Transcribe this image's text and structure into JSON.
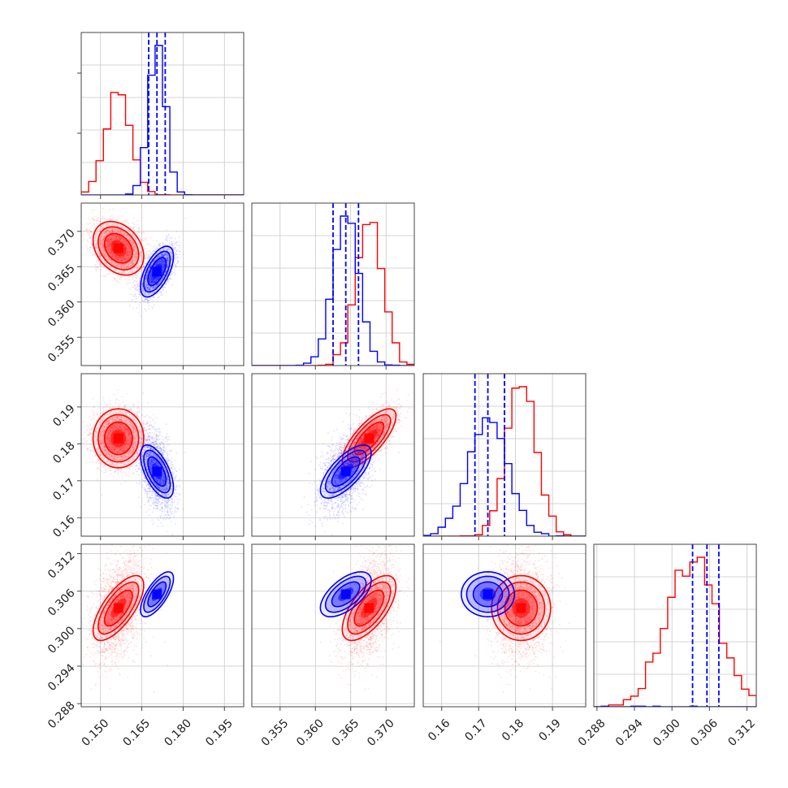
{
  "chart_data": {
    "type": "scatter",
    "subtype": "corner-plot",
    "title": "",
    "grid": true,
    "legend": "none",
    "colors": {
      "series_a": "#ff0000",
      "series_b": "#0000ff"
    },
    "params": [
      {
        "ticks": [
          0.15,
          0.165,
          0.18,
          0.195
        ],
        "tick_labels": [
          "0.150",
          "0.165",
          "0.180",
          "0.195"
        ],
        "range": [
          0.143,
          0.202
        ]
      },
      {
        "ticks": [
          0.355,
          0.36,
          0.365,
          0.37
        ],
        "tick_labels": [
          "0.355",
          "0.360",
          "0.365",
          "0.370"
        ],
        "range": [
          0.351,
          0.374
        ]
      },
      {
        "ticks": [
          0.16,
          0.17,
          0.18,
          0.19
        ],
        "tick_labels": [
          "0.16",
          "0.17",
          "0.18",
          "0.19"
        ],
        "range": [
          0.155,
          0.199
        ]
      },
      {
        "ticks": [
          0.288,
          0.294,
          0.3,
          0.306,
          0.312
        ],
        "tick_labels": [
          "0.288",
          "0.294",
          "0.300",
          "0.306",
          "0.312"
        ],
        "range": [
          0.2875,
          0.3135
        ]
      }
    ],
    "series": [
      {
        "name": "",
        "color": "#ff0000",
        "mean": [
          0.1565,
          0.3676,
          0.1815,
          0.3033
        ],
        "std": [
          0.0046,
          0.0019,
          0.004,
          0.0026
        ],
        "corr": [
          [
            1.0,
            -0.3,
            0.0,
            0.7
          ],
          [
            -0.3,
            1.0,
            0.75,
            0.65
          ],
          [
            0.0,
            0.75,
            1.0,
            0.0
          ],
          [
            0.7,
            0.65,
            0.0,
            1.0
          ]
        ]
      },
      {
        "name": "",
        "color": "#0000ff",
        "mean": [
          0.1705,
          0.3643,
          0.1725,
          0.3055
        ],
        "std": [
          0.003,
          0.0018,
          0.0036,
          0.0018
        ],
        "corr": [
          [
            1.0,
            0.6,
            -0.6,
            0.7
          ],
          [
            0.6,
            1.0,
            0.7,
            0.6
          ],
          [
            -0.6,
            0.7,
            1.0,
            0.0
          ],
          [
            0.7,
            0.6,
            0.0,
            1.0
          ]
        ],
        "quantiles": [
          [
            0.1675,
            0.1705,
            0.1735
          ],
          [
            0.3625,
            0.3643,
            0.3661
          ],
          [
            0.169,
            0.1725,
            0.177
          ],
          [
            0.3033,
            0.3056,
            0.3075
          ]
        ]
      }
    ]
  }
}
